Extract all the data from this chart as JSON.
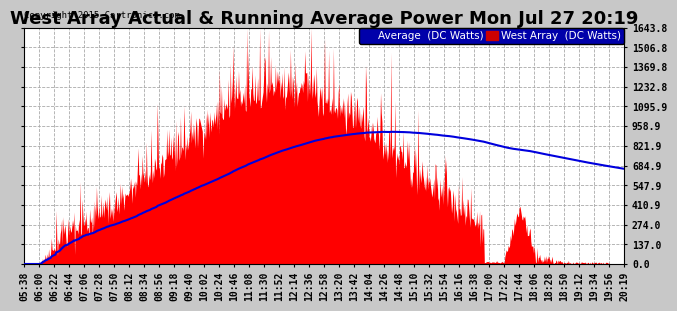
{
  "title": "West Array Actual & Running Average Power Mon Jul 27 20:19",
  "copyright": "Copyright 2015 Cartronics.com",
  "legend_avg_label": "Average  (DC Watts)",
  "legend_west_label": "West Array  (DC Watts)",
  "bg_color": "#c8c8c8",
  "plot_bg_color": "#ffffff",
  "fill_color": "#ff0000",
  "avg_line_color": "#0000dd",
  "ymin": 0.0,
  "ymax": 1643.8,
  "ytick_values": [
    0.0,
    137.0,
    274.0,
    410.9,
    547.9,
    684.9,
    821.9,
    958.9,
    1095.9,
    1232.8,
    1369.8,
    1506.8,
    1643.8
  ],
  "xtick_labels": [
    "05:38",
    "06:00",
    "06:22",
    "06:44",
    "07:06",
    "07:28",
    "07:50",
    "08:12",
    "08:34",
    "08:56",
    "09:18",
    "09:40",
    "10:02",
    "10:24",
    "10:46",
    "11:08",
    "11:30",
    "11:52",
    "12:14",
    "12:36",
    "12:58",
    "13:20",
    "13:42",
    "14:04",
    "14:26",
    "14:48",
    "15:10",
    "15:32",
    "15:54",
    "16:16",
    "16:38",
    "17:00",
    "17:22",
    "17:44",
    "18:06",
    "18:28",
    "18:50",
    "19:12",
    "19:34",
    "19:56",
    "20:19"
  ],
  "grid_color": "#aaaaaa",
  "title_fontsize": 13,
  "tick_fontsize": 7,
  "legend_fontsize": 7.5
}
